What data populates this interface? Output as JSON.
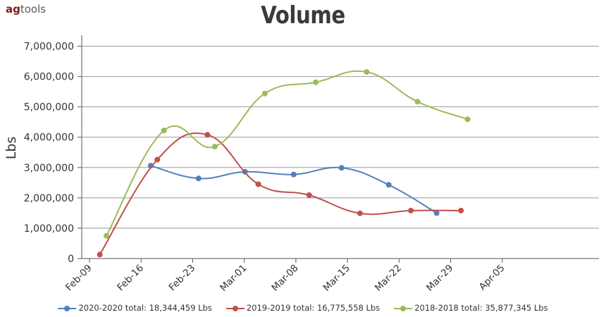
{
  "logo": {
    "bold": "ag",
    "rest": "tools"
  },
  "chart_data": {
    "type": "line",
    "title": "Volume",
    "ylabel": "Lbs",
    "xlabel": "",
    "ylim": [
      0,
      7500000
    ],
    "y_ticks": [
      0,
      1000000,
      2000000,
      3000000,
      4000000,
      5000000,
      6000000,
      7000000
    ],
    "y_tick_labels": [
      "0",
      "1,000,000",
      "2,000,000",
      "3,000,000",
      "4,000,000",
      "5,000,000",
      "6,000,000",
      "7,000,000"
    ],
    "x_ticks": [
      "Feb-09",
      "Feb-16",
      "Feb-23",
      "Mar-01",
      "Mar-08",
      "Mar-15",
      "Mar-22",
      "Mar-29",
      "Apr-05"
    ],
    "grid": true,
    "legend_position": "bottom",
    "series": [
      {
        "name": "2020-2020 total: 18,344,459 Lbs",
        "color": "#4f81bd",
        "points": [
          {
            "day": 8.3,
            "value": 3060000
          },
          {
            "day": 14.8,
            "value": 2640000
          },
          {
            "day": 21.1,
            "value": 2860000
          },
          {
            "day": 27.7,
            "value": 2770000
          },
          {
            "day": 34.2,
            "value": 2990000
          },
          {
            "day": 40.6,
            "value": 2430000
          },
          {
            "day": 47.1,
            "value": 1500000
          }
        ]
      },
      {
        "name": "2019-2019 total: 16,775,558 Lbs",
        "color": "#c0504d",
        "points": [
          {
            "day": 1.4,
            "value": 130000
          },
          {
            "day": 9.2,
            "value": 3260000
          },
          {
            "day": 16.0,
            "value": 4080000
          },
          {
            "day": 22.9,
            "value": 2450000
          },
          {
            "day": 29.8,
            "value": 2090000
          },
          {
            "day": 36.7,
            "value": 1490000
          },
          {
            "day": 43.6,
            "value": 1580000
          },
          {
            "day": 50.4,
            "value": 1580000
          }
        ]
      },
      {
        "name": "2018-2018 total: 35,877,345 Lbs",
        "color": "#9bbb59",
        "points": [
          {
            "day": 2.3,
            "value": 750000
          },
          {
            "day": 10.1,
            "value": 4220000
          },
          {
            "day": 17.0,
            "value": 3690000
          },
          {
            "day": 23.8,
            "value": 5440000
          },
          {
            "day": 30.7,
            "value": 5810000
          },
          {
            "day": 37.6,
            "value": 6150000
          },
          {
            "day": 44.5,
            "value": 5170000
          },
          {
            "day": 51.3,
            "value": 4590000
          }
        ]
      }
    ]
  }
}
